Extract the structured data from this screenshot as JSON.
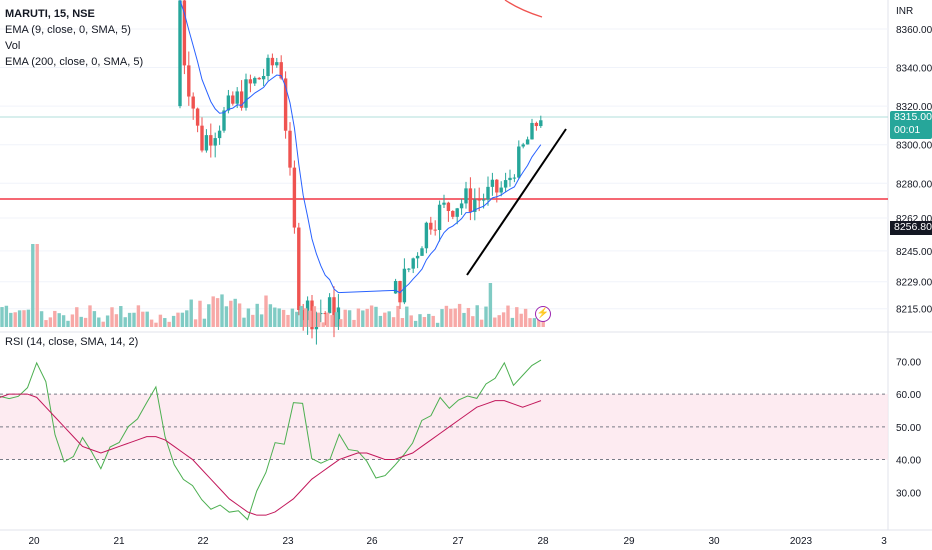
{
  "legend": {
    "symbol": "MARUTI, 15, NSE",
    "ema9": "EMA (9, close, 0, SMA, 5)",
    "vol": "Vol",
    "ema200": "EMA (200, close, 0, SMA, 5)"
  },
  "rsi_legend": "RSI (14, close, SMA, 14, 2)",
  "currency": "INR",
  "last_price": {
    "value": "8315.00",
    "countdown": "00:01"
  },
  "level_price": "8256.80",
  "colors": {
    "up": "#26a69a",
    "down": "#ef5350",
    "ema": "#2962ff",
    "rsi": "#4caf50",
    "rsi_ma": "#c2185b",
    "level_line": "#f23645",
    "rsi_band": "#fce4ec"
  },
  "chart_data": [
    {
      "type": "candlestick",
      "title": "MARUTI, 15, NSE",
      "ylim": [
        8205,
        8375
      ],
      "y_ticks": [
        "8360.00",
        "8340.00",
        "8320.00",
        "8300.00",
        "8280.00",
        "8262.00",
        "8245.00",
        "8229.00",
        "8215.00"
      ],
      "x_ticks": [
        "20",
        "21",
        "22",
        "23",
        "26",
        "27",
        "28",
        "29",
        "30",
        "2023",
        "3"
      ],
      "horizontal_level": 8275,
      "trendline": [
        [
          8228,
          8308
        ]
      ],
      "overlays": [
        "EMA 9",
        "EMA 200",
        "Volume"
      ]
    },
    {
      "type": "line",
      "title": "RSI (14, close, SMA, 14, 2)",
      "ylim": [
        20,
        75
      ],
      "y_ticks": [
        "70.00",
        "60.00",
        "50.00",
        "40.00",
        "30.00"
      ],
      "band": [
        40,
        60
      ],
      "series": [
        {
          "values": [
            58,
            60,
            59,
            61,
            72,
            63,
            45,
            38,
            40,
            44,
            42,
            40,
            46,
            48,
            52,
            50,
            57,
            62,
            46,
            38,
            34,
            30,
            28,
            25,
            24,
            23,
            22,
            24,
            30,
            38,
            48,
            44,
            56,
            60,
            42,
            36,
            40,
            46,
            44,
            40,
            38,
            36,
            34,
            38,
            44,
            47,
            52,
            55,
            57,
            58,
            60,
            62,
            57,
            64,
            66,
            67,
            65,
            63,
            66,
            68
          ]
        },
        {
          "values": [
            59,
            60,
            60,
            60,
            59,
            56,
            53,
            50,
            47,
            44,
            43,
            42,
            43,
            44,
            45,
            46,
            47,
            47,
            46,
            44,
            42,
            40,
            37,
            34,
            31,
            28,
            26,
            24,
            23,
            23,
            24,
            26,
            28,
            31,
            34,
            36,
            38,
            40,
            41,
            42,
            42,
            41,
            40,
            40,
            41,
            42,
            44,
            46,
            48,
            50,
            52,
            54,
            56,
            57,
            58,
            58,
            57,
            56,
            57,
            58
          ]
        }
      ]
    }
  ]
}
